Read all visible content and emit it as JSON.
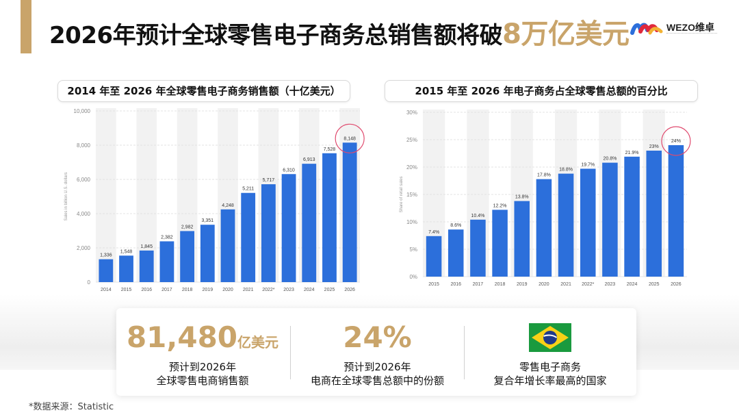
{
  "header": {
    "title_main": "2026年预计全球零售电子商务总销售额将破",
    "title_highlight": "8万亿美元",
    "logo_text": "WEZO维卓"
  },
  "colors": {
    "accent": "#c9a46a",
    "bar": "#2c6fdb",
    "highlight_circle": "#e04a6e"
  },
  "chart_data": [
    {
      "type": "bar",
      "title": "2014 年至 2026 年全球零售电子商务销售额（十亿美元）",
      "ylabel": "Sales in billion U.S. dollars",
      "categories": [
        "2014",
        "2015",
        "2016",
        "2017",
        "2018",
        "2019",
        "2020",
        "2021",
        "2022*",
        "2023",
        "2024",
        "2025",
        "2026"
      ],
      "values": [
        1336,
        1548,
        1845,
        2382,
        2982,
        3351,
        4248,
        5211,
        5717,
        6310,
        6913,
        7528,
        8148
      ],
      "value_labels": [
        "1,336",
        "1,548",
        "1,845",
        "2,382",
        "2,982",
        "3,351",
        "4,248",
        "5,211",
        "5,717",
        "6,310",
        "6,913",
        "7,528",
        "8,148"
      ],
      "yticks": [
        "0",
        "2,000",
        "4,000",
        "6,000",
        "8,000",
        "10,000"
      ],
      "ylim": [
        0,
        10000
      ],
      "highlight": "2026",
      "grid": true
    },
    {
      "type": "bar",
      "title": "2015 年至 2026 年电子商务占全球零售总额的百分比",
      "ylabel": "Share of retail sales",
      "categories": [
        "2015",
        "2016",
        "2017",
        "2018",
        "2019",
        "2020",
        "2021",
        "2022*",
        "2023",
        "2024",
        "2025",
        "2026"
      ],
      "values": [
        7.4,
        8.6,
        10.4,
        12.2,
        13.8,
        17.8,
        18.8,
        19.7,
        20.8,
        21.9,
        23,
        24
      ],
      "value_labels": [
        "7.4%",
        "8.6%",
        "10.4%",
        "12.2%",
        "13.8%",
        "17.8%",
        "18.8%",
        "19.7%",
        "20.8%",
        "21.9%",
        "23%",
        "24%"
      ],
      "yticks": [
        "0%",
        "5%",
        "10%",
        "15%",
        "20%",
        "25%",
        "30%"
      ],
      "ylim": [
        0,
        30
      ],
      "highlight": "2026",
      "grid": true
    }
  ],
  "stats": [
    {
      "value": "81,480",
      "unit": "亿美元",
      "line1": "预计到2026年",
      "line2": "全球零售电商销售额"
    },
    {
      "value": "24%",
      "unit": "",
      "line1": "预计到2026年",
      "line2": "电商在全球零售总额中的份额"
    },
    {
      "flag": "brazil-flag",
      "line1": "零售电子商务",
      "line2": "复合年增长率最高的国家"
    }
  ],
  "source": "*数据来源：Statistic"
}
